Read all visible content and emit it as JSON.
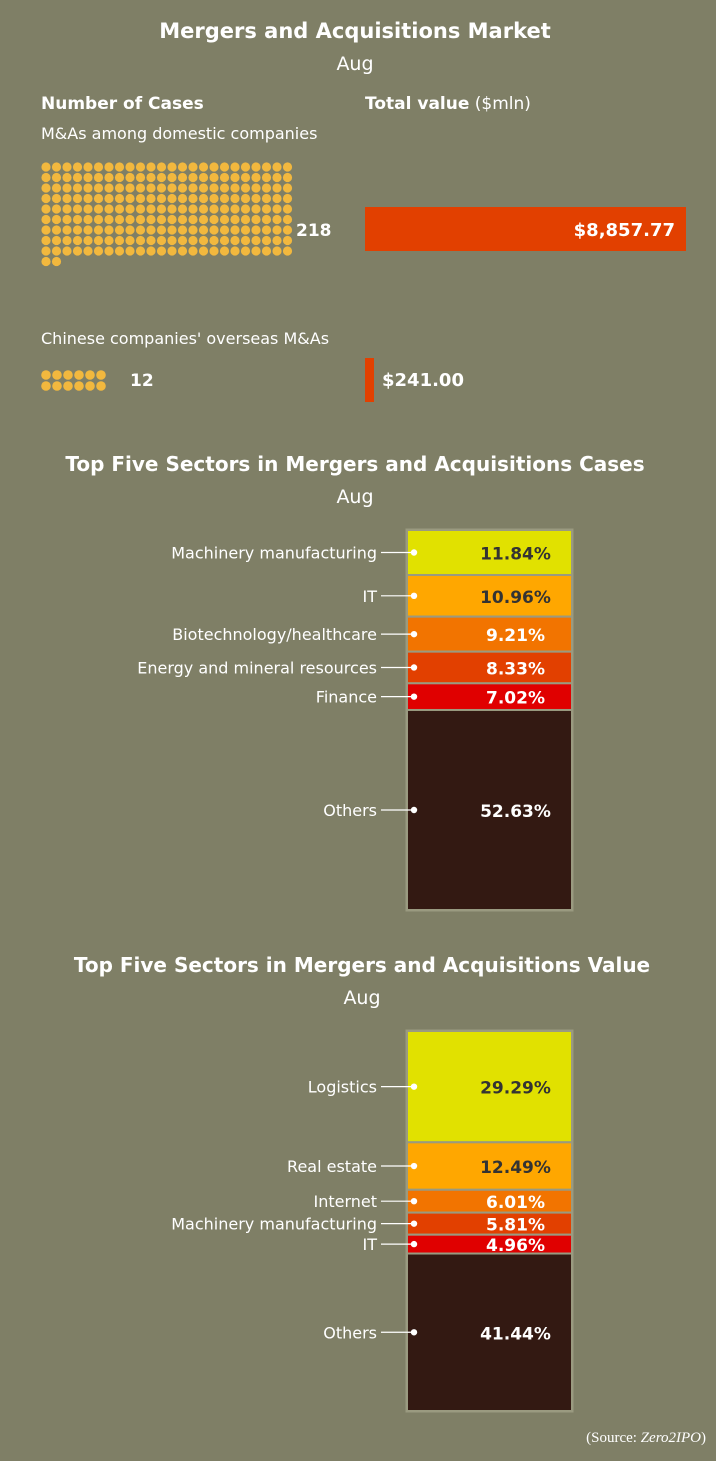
{
  "colors": {
    "background": "#7f7f66",
    "dot": "#f2b83e",
    "bar": "#e24000",
    "seg_yellow": "#e1e100",
    "seg_amber": "#ffa700",
    "seg_orange": "#f27400",
    "seg_redorange": "#e24000",
    "seg_red": "#e00000",
    "seg_dark": "#331912"
  },
  "chart_data": [
    {
      "type": "bar",
      "title": "Mergers and Acquisitions Market",
      "subtitle": "Aug",
      "col_cases_label": "Number of Cases",
      "col_value_label": "Total value",
      "col_value_unit": " ($mln)",
      "rows": [
        {
          "label": "M&As among domestic companies",
          "cases": 218,
          "cases_label": "218",
          "value": 8857.77,
          "value_label": "$8,857.77"
        },
        {
          "label": "Chinese companies' overseas M&As",
          "cases": 12,
          "cases_label": "12",
          "value": 241.0,
          "value_label": "$241.00"
        }
      ]
    },
    {
      "type": "bar",
      "title": "Top Five Sectors in Mergers and Acquisitions Cases",
      "subtitle": "Aug",
      "segments": [
        {
          "name": "Machinery manufacturing",
          "value": 11.84,
          "label": "11.84%",
          "color": "#e1e100"
        },
        {
          "name": "IT",
          "value": 10.96,
          "label": "10.96%",
          "color": "#ffa700"
        },
        {
          "name": "Biotechnology/healthcare",
          "value": 9.21,
          "label": "9.21%",
          "color": "#f27400"
        },
        {
          "name": "Energy and mineral resources",
          "value": 8.33,
          "label": "8.33%",
          "color": "#e24000"
        },
        {
          "name": "Finance",
          "value": 7.02,
          "label": "7.02%",
          "color": "#e00000"
        },
        {
          "name": "Others",
          "value": 52.63,
          "label": "52.63%",
          "color": "#331912"
        }
      ]
    },
    {
      "type": "bar",
      "title": "Top Five Sectors in Mergers and Acquisitions Value",
      "subtitle": "Aug",
      "segments": [
        {
          "name": "Logistics",
          "value": 29.29,
          "label": "29.29%",
          "color": "#e1e100"
        },
        {
          "name": "Real estate",
          "value": 12.49,
          "label": "12.49%",
          "color": "#ffa700"
        },
        {
          "name": "Internet",
          "value": 6.01,
          "label": "6.01%",
          "color": "#f27400"
        },
        {
          "name": "Machinery manufacturing",
          "value": 5.81,
          "label": "5.81%",
          "color": "#e24000"
        },
        {
          "name": "IT",
          "value": 4.96,
          "label": "4.96%",
          "color": "#e00000"
        },
        {
          "name": "Others",
          "value": 41.44,
          "label": "41.44%",
          "color": "#331912"
        }
      ]
    }
  ],
  "source": {
    "prefix": "(Source: ",
    "name": "Zero2IPO",
    "suffix": ")"
  }
}
